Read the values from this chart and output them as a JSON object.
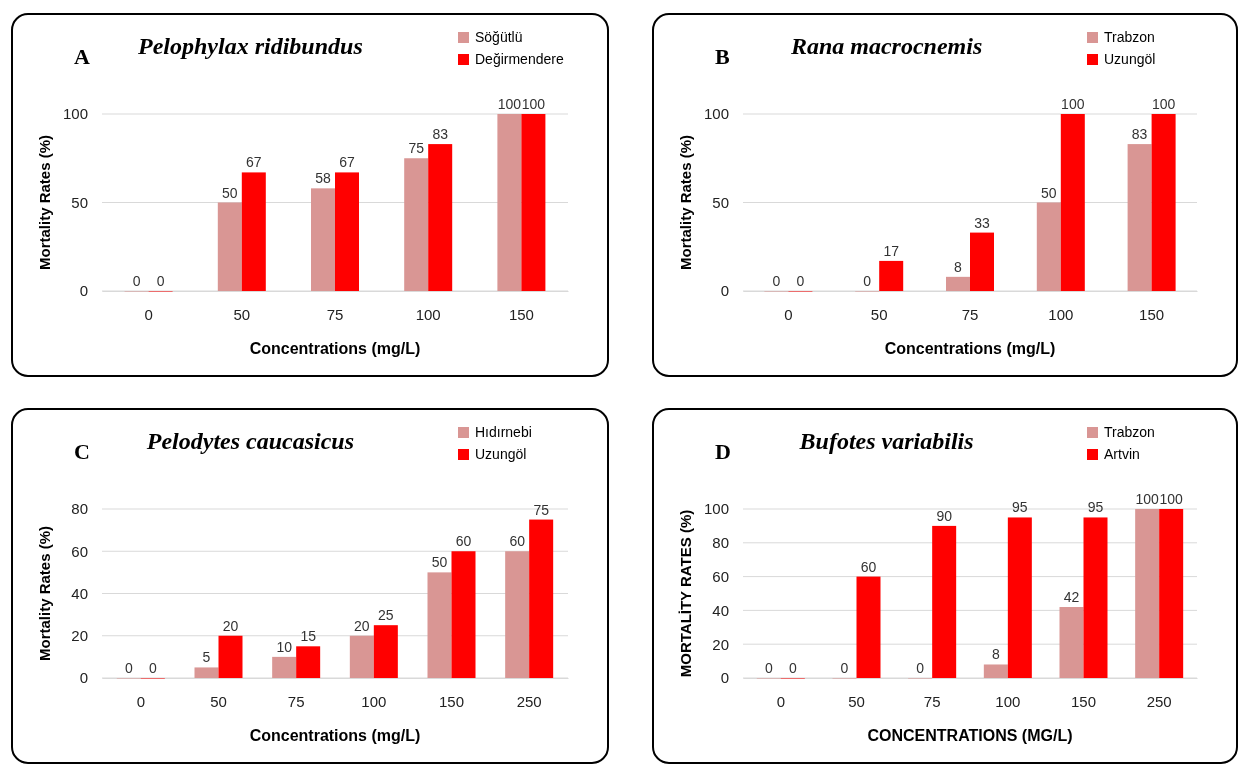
{
  "chart_data": [
    {
      "type": "bar",
      "title": "Pelophylax ridibundus",
      "annotations": [
        "A"
      ],
      "xlabel": "Concentrations (mg/L)",
      "ylabel": "Mortality Rates (%)",
      "categories": [
        "0",
        "50",
        "75",
        "100",
        "150"
      ],
      "series": [
        {
          "name": "Söğütlü",
          "color": "#d99694",
          "values": [
            0,
            50,
            58,
            75,
            100
          ]
        },
        {
          "name": "Değirmendere",
          "color": "#ff0000",
          "values": [
            0,
            67,
            67,
            83,
            100
          ]
        }
      ],
      "ylim": [
        0,
        100
      ],
      "yticks": [
        0,
        50,
        100
      ],
      "grid": "y",
      "legend": "top right",
      "data_labels": true
    },
    {
      "type": "bar",
      "title": "Rana macrocnemis",
      "annotations": [
        "B"
      ],
      "xlabel": "Concentrations (mg/L)",
      "ylabel": "Mortality Rates (%)",
      "categories": [
        "0",
        "50",
        "75",
        "100",
        "150"
      ],
      "series": [
        {
          "name": "Trabzon",
          "color": "#d99694",
          "values": [
            0,
            0,
            8,
            50,
            83
          ]
        },
        {
          "name": "Uzungöl",
          "color": "#ff0000",
          "values": [
            0,
            17,
            33,
            100,
            100
          ]
        }
      ],
      "ylim": [
        0,
        100
      ],
      "yticks": [
        0,
        50,
        100
      ],
      "grid": "y",
      "legend": "top right",
      "data_labels": true
    },
    {
      "type": "bar",
      "title": "Pelodytes caucasicus",
      "annotations": [
        "C"
      ],
      "xlabel": "Concentrations (mg/L)",
      "ylabel": "Mortality Rates (%)",
      "categories": [
        "0",
        "50",
        "75",
        "100",
        "150",
        "250"
      ],
      "series": [
        {
          "name": "Hıdırnebi",
          "color": "#d99694",
          "values": [
            0,
            5,
            10,
            20,
            50,
            60
          ]
        },
        {
          "name": "Uzungöl",
          "color": "#ff0000",
          "values": [
            0,
            20,
            15,
            25,
            60,
            75
          ]
        }
      ],
      "ylim": [
        0,
        80
      ],
      "yticks": [
        0,
        20,
        40,
        60,
        80
      ],
      "grid": "y",
      "legend": "top right",
      "data_labels": true
    },
    {
      "type": "bar",
      "title": "Bufotes variabilis",
      "annotations": [
        "D"
      ],
      "xlabel": "CONCENTRATIONS (MG/L)",
      "ylabel": "MORTALİTY RATES  (%)",
      "categories": [
        "0",
        "50",
        "75",
        "100",
        "150",
        "250"
      ],
      "series": [
        {
          "name": "Trabzon",
          "color": "#d99694",
          "values": [
            0,
            0,
            0,
            8,
            42,
            100
          ]
        },
        {
          "name": "Artvin",
          "color": "#ff0000",
          "values": [
            0,
            60,
            90,
            95,
            95,
            100
          ]
        }
      ],
      "ylim": [
        0,
        100
      ],
      "yticks": [
        0,
        20,
        40,
        60,
        80,
        100
      ],
      "grid": "y",
      "legend": "top right",
      "data_labels": true
    }
  ]
}
